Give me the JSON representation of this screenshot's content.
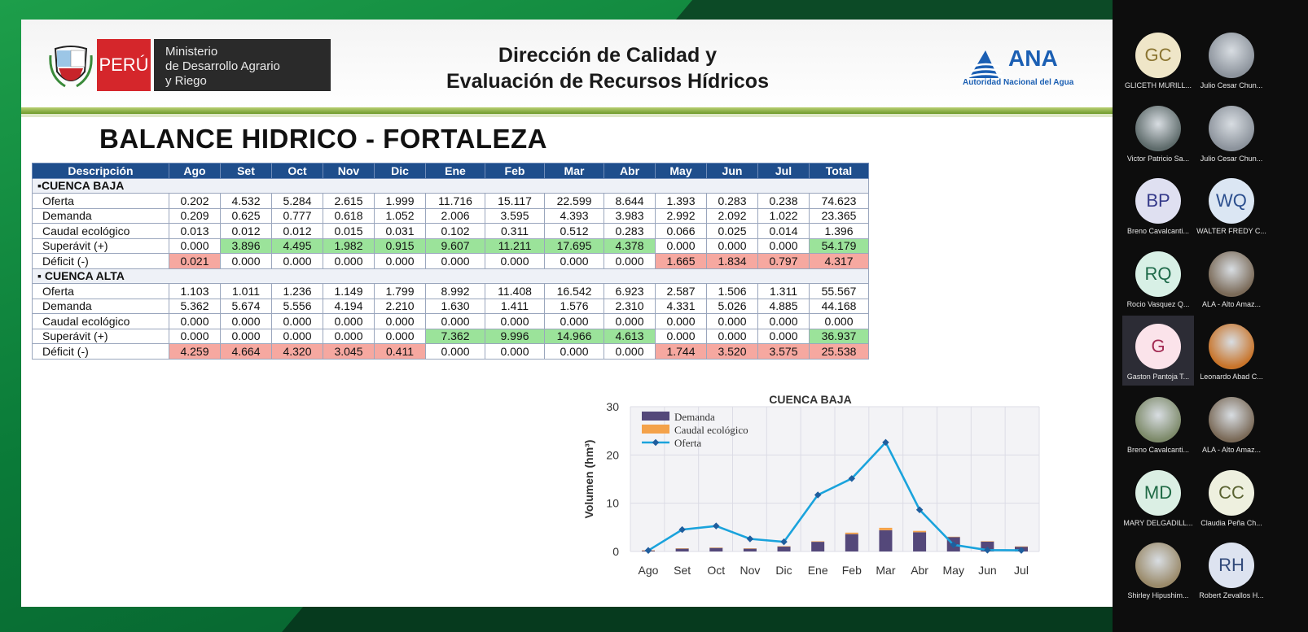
{
  "header": {
    "peru_label": "PERÚ",
    "ministry_lines": [
      "Ministerio",
      "de Desarrollo Agrario",
      "y Riego"
    ],
    "title_lines": [
      "Dirección de Calidad y",
      "Evaluación de Recursos Hídricos"
    ],
    "ana_logo_text": "ANA",
    "ana_subtitle": "Autoridad Nacional del Agua"
  },
  "slide_title": "BALANCE HIDRICO - FORTALEZA",
  "table": {
    "headers": [
      "Descripción",
      "Ago",
      "Set",
      "Oct",
      "Nov",
      "Dic",
      "Ene",
      "Feb",
      "Mar",
      "Abr",
      "May",
      "Jun",
      "Jul",
      "Total"
    ],
    "sections": [
      {
        "label": "▪CUENCA BAJA",
        "rows": [
          {
            "desc": "Oferta",
            "values": [
              "0.202",
              "4.532",
              "5.284",
              "2.615",
              "1.999",
              "11.716",
              "15.117",
              "22.599",
              "8.644",
              "1.393",
              "0.283",
              "0.238",
              "74.623"
            ],
            "hl": [
              "",
              "",
              "",
              "",
              "",
              "",
              "",
              "",
              "",
              "",
              "",
              "",
              ""
            ]
          },
          {
            "desc": "Demanda",
            "values": [
              "0.209",
              "0.625",
              "0.777",
              "0.618",
              "1.052",
              "2.006",
              "3.595",
              "4.393",
              "3.983",
              "2.992",
              "2.092",
              "1.022",
              "23.365"
            ],
            "hl": [
              "",
              "",
              "",
              "",
              "",
              "",
              "",
              "",
              "",
              "",
              "",
              "",
              ""
            ]
          },
          {
            "desc": "Caudal ecológico",
            "values": [
              "0.013",
              "0.012",
              "0.012",
              "0.015",
              "0.031",
              "0.102",
              "0.311",
              "0.512",
              "0.283",
              "0.066",
              "0.025",
              "0.014",
              "1.396"
            ],
            "hl": [
              "",
              "",
              "",
              "",
              "",
              "",
              "",
              "",
              "",
              "",
              "",
              "",
              ""
            ]
          },
          {
            "desc": "Superávit (+)",
            "values": [
              "0.000",
              "3.896",
              "4.495",
              "1.982",
              "0.915",
              "9.607",
              "11.211",
              "17.695",
              "4.378",
              "0.000",
              "0.000",
              "0.000",
              "54.179"
            ],
            "hl": [
              "",
              "g",
              "g",
              "g",
              "g",
              "g",
              "g",
              "g",
              "g",
              "",
              "",
              "",
              "g"
            ]
          },
          {
            "desc": "Déficit (-)",
            "values": [
              "0.021",
              "0.000",
              "0.000",
              "0.000",
              "0.000",
              "0.000",
              "0.000",
              "0.000",
              "0.000",
              "1.665",
              "1.834",
              "0.797",
              "4.317"
            ],
            "hl": [
              "r",
              "",
              "",
              "",
              "",
              "",
              "",
              "",
              "",
              "r",
              "r",
              "r",
              "r"
            ]
          }
        ]
      },
      {
        "label": "▪ CUENCA ALTA",
        "rows": [
          {
            "desc": "Oferta",
            "values": [
              "1.103",
              "1.011",
              "1.236",
              "1.149",
              "1.799",
              "8.992",
              "11.408",
              "16.542",
              "6.923",
              "2.587",
              "1.506",
              "1.311",
              "55.567"
            ],
            "hl": [
              "",
              "",
              "",
              "",
              "",
              "",
              "",
              "",
              "",
              "",
              "",
              "",
              ""
            ]
          },
          {
            "desc": "Demanda",
            "values": [
              "5.362",
              "5.674",
              "5.556",
              "4.194",
              "2.210",
              "1.630",
              "1.411",
              "1.576",
              "2.310",
              "4.331",
              "5.026",
              "4.885",
              "44.168"
            ],
            "hl": [
              "",
              "",
              "",
              "",
              "",
              "",
              "",
              "",
              "",
              "",
              "",
              "",
              ""
            ]
          },
          {
            "desc": "Caudal ecológico",
            "values": [
              "0.000",
              "0.000",
              "0.000",
              "0.000",
              "0.000",
              "0.000",
              "0.000",
              "0.000",
              "0.000",
              "0.000",
              "0.000",
              "0.000",
              "0.000"
            ],
            "hl": [
              "",
              "",
              "",
              "",
              "",
              "",
              "",
              "",
              "",
              "",
              "",
              "",
              ""
            ]
          },
          {
            "desc": "Superávit (+)",
            "values": [
              "0.000",
              "0.000",
              "0.000",
              "0.000",
              "0.000",
              "7.362",
              "9.996",
              "14.966",
              "4.613",
              "0.000",
              "0.000",
              "0.000",
              "36.937"
            ],
            "hl": [
              "",
              "",
              "",
              "",
              "",
              "g",
              "g",
              "g",
              "g",
              "",
              "",
              "",
              "g"
            ]
          },
          {
            "desc": "Déficit (-)",
            "values": [
              "4.259",
              "4.664",
              "4.320",
              "3.045",
              "0.411",
              "0.000",
              "0.000",
              "0.000",
              "0.000",
              "1.744",
              "3.520",
              "3.575",
              "25.538"
            ],
            "hl": [
              "r",
              "r",
              "r",
              "r",
              "r",
              "",
              "",
              "",
              "",
              "r",
              "r",
              "r",
              "r"
            ]
          }
        ]
      }
    ]
  },
  "chart_data": {
    "type": "bar",
    "title": "CUENCA BAJA",
    "ylabel": "Volumen (hm³)",
    "xlabel": "",
    "ylim": [
      0,
      30
    ],
    "yticks": [
      0,
      10,
      20,
      30
    ],
    "categories": [
      "Ago",
      "Set",
      "Oct",
      "Nov",
      "Dic",
      "Ene",
      "Feb",
      "Mar",
      "Abr",
      "May",
      "Jun",
      "Jul"
    ],
    "series": [
      {
        "name": "Demanda",
        "kind": "bar-stacked",
        "color": "#54487a",
        "values": [
          0.209,
          0.625,
          0.777,
          0.618,
          1.052,
          2.006,
          3.595,
          4.393,
          3.983,
          2.992,
          2.092,
          1.022
        ]
      },
      {
        "name": "Caudal ecológico",
        "kind": "bar-stacked",
        "color": "#f4a24a",
        "values": [
          0.013,
          0.012,
          0.012,
          0.015,
          0.031,
          0.102,
          0.311,
          0.512,
          0.283,
          0.066,
          0.025,
          0.014
        ]
      },
      {
        "name": "Oferta",
        "kind": "line",
        "color": "#1aa3dc",
        "values": [
          0.202,
          4.532,
          5.284,
          2.615,
          1.999,
          11.716,
          15.117,
          22.599,
          8.644,
          1.393,
          0.283,
          0.238
        ]
      }
    ],
    "legend_position": "top-left",
    "grid": true
  },
  "participants": [
    {
      "initials": "GC",
      "name": "GLICETH MURILL...",
      "bg": "#efe6c8",
      "fg": "#8a7430"
    },
    {
      "initials": "",
      "name": "Julio Cesar Chun...",
      "photo": "#8c939c"
    },
    {
      "initials": "",
      "name": "Victor Patricio Sa...",
      "photo": "#5e6b6b"
    },
    {
      "initials": "",
      "name": "Julio Cesar Chun...",
      "photo": "#8c939c"
    },
    {
      "initials": "BP",
      "name": "Breno Cavalcanti...",
      "bg": "#dfe0f1",
      "fg": "#353a8a"
    },
    {
      "initials": "WQ",
      "name": "WALTER FREDY C...",
      "bg": "#dbe6f3",
      "fg": "#2c4f8e"
    },
    {
      "initials": "RQ",
      "name": "Rocio Vasquez Q...",
      "bg": "#d8f0e6",
      "fg": "#1e6a4a"
    },
    {
      "initials": "",
      "name": "ALA - Alto Amaz...",
      "photo": "#7a6a58"
    },
    {
      "initials": "G",
      "name": "Gaston Pantoja T...",
      "bg": "#fbe3ea",
      "fg": "#a22a52"
    },
    {
      "initials": "",
      "name": "Leonardo Abad C...",
      "photo": "#c8742a"
    },
    {
      "initials": "",
      "name": "Breno Cavalcanti...",
      "photo": "#7d8a6a"
    },
    {
      "initials": "",
      "name": "ALA - Alto Amaz...",
      "photo": "#7a6a58"
    },
    {
      "initials": "MD",
      "name": "MARY DELGADILL...",
      "bg": "#dbefe4",
      "fg": "#1f6a45"
    },
    {
      "initials": "CC",
      "name": "Claudia Peña Ch...",
      "bg": "#eef0df",
      "fg": "#5a6332"
    },
    {
      "initials": "",
      "name": "Shirley Hipushim...",
      "photo": "#9a8a6a"
    },
    {
      "initials": "RH",
      "name": "Robert Zevallos H...",
      "bg": "#dde3f0",
      "fg": "#324a7a"
    }
  ]
}
